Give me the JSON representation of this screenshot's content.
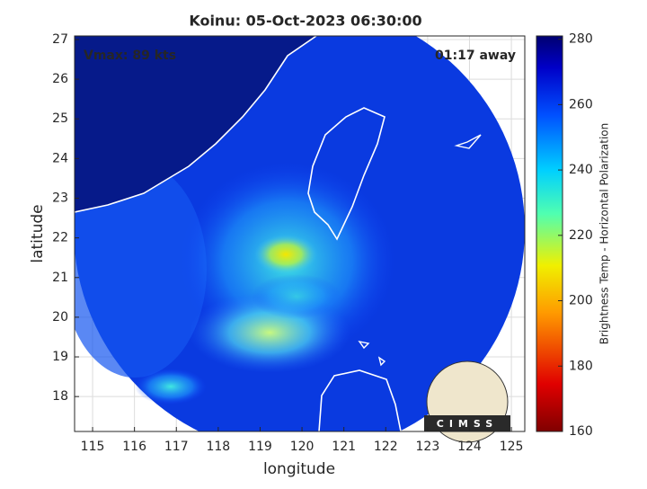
{
  "chart_data": {
    "type": "map",
    "title": "Koinu: 05-Oct-2023 06:30:00",
    "xlabel": "longitude",
    "ylabel": "latitude",
    "xlim": [
      114.57,
      125.32
    ],
    "xticks": [
      115,
      116,
      117,
      118,
      119,
      120,
      121,
      122,
      123,
      124,
      125
    ],
    "ylim": [
      17.12,
      27.09
    ],
    "yticks": [
      18,
      19,
      20,
      21,
      22,
      23,
      24,
      25,
      26,
      27
    ],
    "grid": true,
    "annotations": [
      "Vmax: 89 kts",
      "01:17 away"
    ],
    "logo": "CIMSS",
    "colorbar": {
      "label": "Brightness Temp - Horizontal Polarization",
      "lim": [
        160,
        281
      ],
      "ticks": [
        160,
        180,
        200,
        220,
        240,
        260,
        280
      ]
    }
  }
}
